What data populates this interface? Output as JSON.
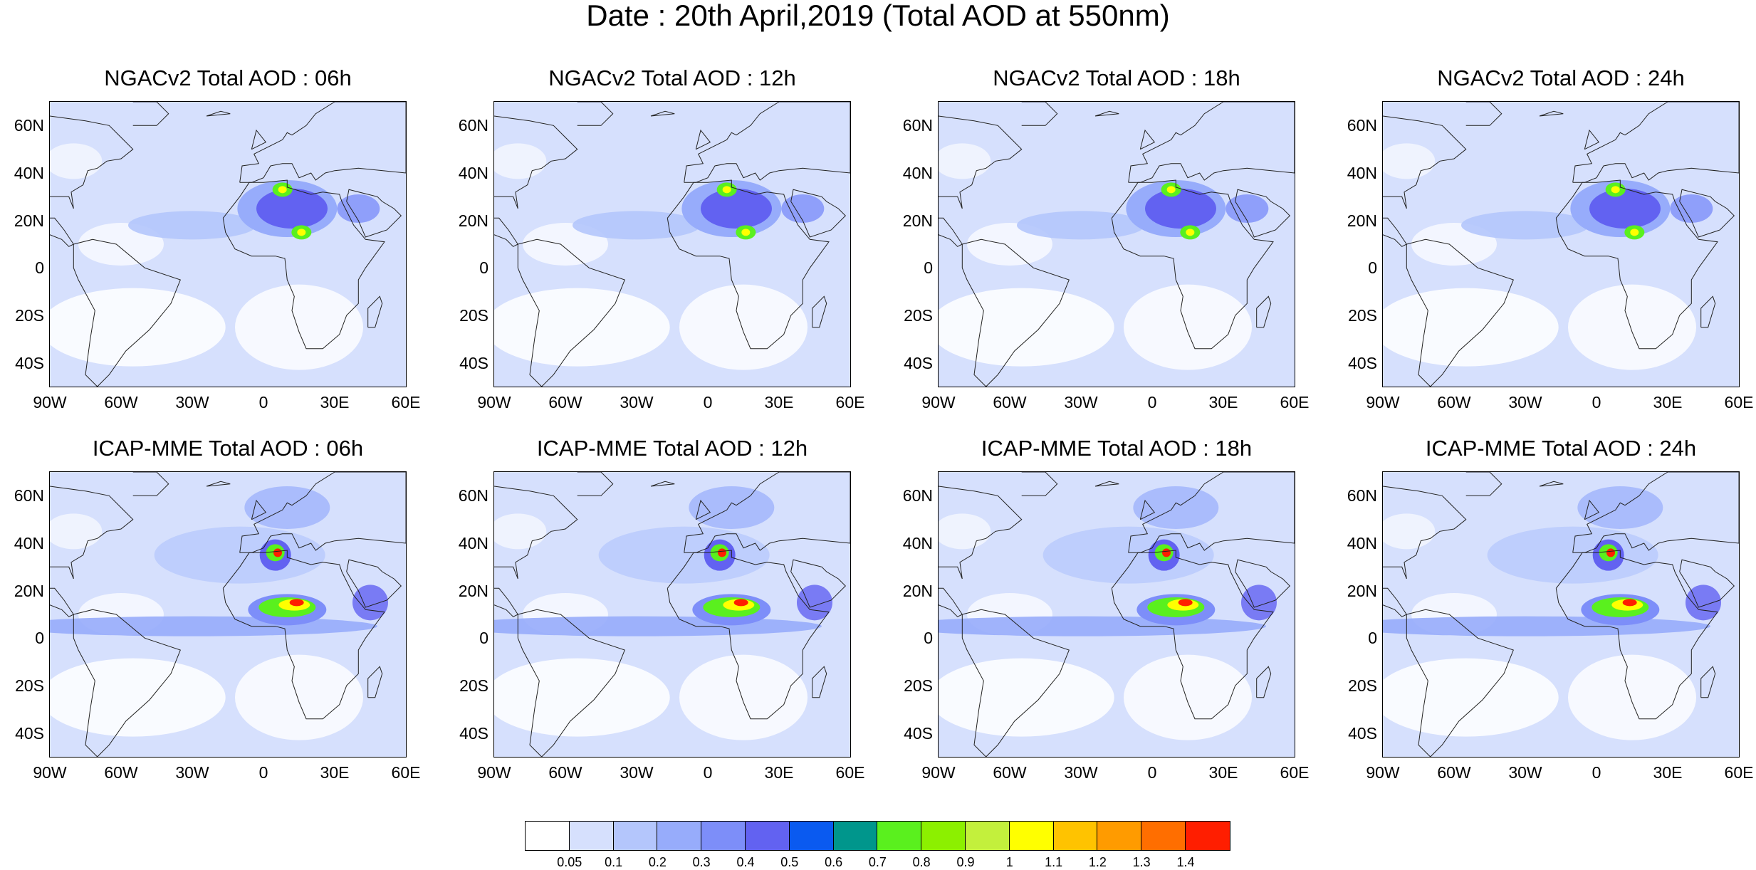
{
  "title": "Date : 20th April,2019 (Total AOD at 550nm)",
  "panels": [
    {
      "title": "NGACv2 Total AOD : 06h",
      "model": "NGACv2",
      "hour": "06h"
    },
    {
      "title": "NGACv2 Total AOD : 12h",
      "model": "NGACv2",
      "hour": "12h"
    },
    {
      "title": "NGACv2 Total AOD : 18h",
      "model": "NGACv2",
      "hour": "18h"
    },
    {
      "title": "NGACv2 Total AOD : 24h",
      "model": "NGACv2",
      "hour": "24h"
    },
    {
      "title": "ICAP-MME Total AOD : 06h",
      "model": "ICAP-MME",
      "hour": "06h"
    },
    {
      "title": "ICAP-MME Total AOD : 12h",
      "model": "ICAP-MME",
      "hour": "12h"
    },
    {
      "title": "ICAP-MME Total AOD : 18h",
      "model": "ICAP-MME",
      "hour": "18h"
    },
    {
      "title": "ICAP-MME Total AOD : 24h",
      "model": "ICAP-MME",
      "hour": "24h"
    }
  ],
  "axes": {
    "y_labels": [
      "60N",
      "40N",
      "20N",
      "0",
      "20S",
      "40S"
    ],
    "x_labels": [
      "90W",
      "60W",
      "30W",
      "0",
      "30E",
      "60E"
    ]
  },
  "colorbar": {
    "colors": [
      "#ffffff",
      "#d6e0fd",
      "#b4c6fc",
      "#97acfb",
      "#7d8ef9",
      "#6262f1",
      "#0a5af0",
      "#00968c",
      "#5af01e",
      "#8cf000",
      "#c3f03c",
      "#ffff00",
      "#ffc300",
      "#ff9b00",
      "#ff6e00",
      "#ff1e00"
    ],
    "labels": [
      "0.05",
      "0.1",
      "0.2",
      "0.3",
      "0.4",
      "0.5",
      "0.6",
      "0.7",
      "0.8",
      "0.9",
      "1",
      "1.1",
      "1.2",
      "1.3",
      "1.4"
    ]
  }
}
